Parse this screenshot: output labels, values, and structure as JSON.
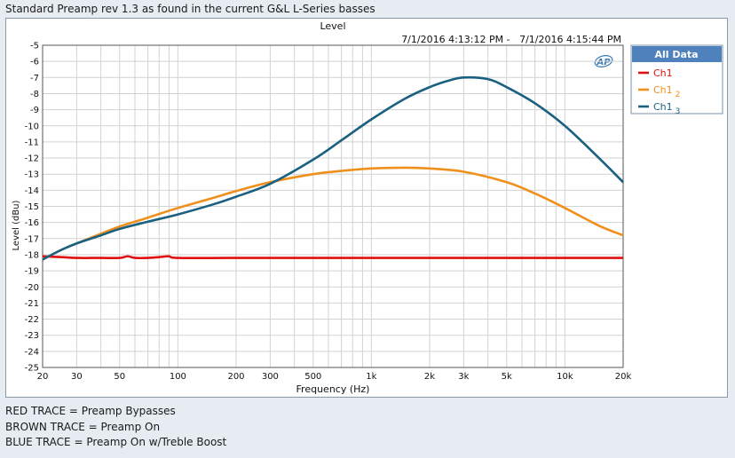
{
  "window_title": "Standard Preamp rev 1.3 as found in the current G&L L-Series basses",
  "notes": [
    "RED TRACE = Preamp Bypasses",
    "BROWN TRACE = Preamp On",
    "BLUE TRACE = Preamp On w/Treble Boost"
  ],
  "logo_text": "AP",
  "chart_data": {
    "type": "line",
    "title": "Level",
    "subtitle": "7/1/2016 4:13:12 PM -   7/1/2016 4:15:44 PM",
    "xlabel": "Frequency (Hz)",
    "ylabel": "Level (dBu)",
    "x_scale": "log",
    "xlim": [
      20,
      20000
    ],
    "ylim": [
      -25,
      -5
    ],
    "grid": true,
    "x_ticks": [
      {
        "value": 20,
        "label": "20"
      },
      {
        "value": 30,
        "label": "30"
      },
      {
        "value": 50,
        "label": "50"
      },
      {
        "value": 100,
        "label": "100"
      },
      {
        "value": 200,
        "label": "200"
      },
      {
        "value": 300,
        "label": "300"
      },
      {
        "value": 500,
        "label": "500"
      },
      {
        "value": 1000,
        "label": "1k"
      },
      {
        "value": 2000,
        "label": "2k"
      },
      {
        "value": 3000,
        "label": "3k"
      },
      {
        "value": 5000,
        "label": "5k"
      },
      {
        "value": 10000,
        "label": "10k"
      },
      {
        "value": 20000,
        "label": "20k"
      }
    ],
    "y_ticks": [
      -5,
      -6,
      -7,
      -8,
      -9,
      -10,
      -11,
      -12,
      -13,
      -14,
      -15,
      -16,
      -17,
      -18,
      -19,
      -20,
      -21,
      -22,
      -23,
      -24,
      -25
    ],
    "legend": {
      "title": "All Data",
      "placement": "right",
      "entries": [
        {
          "label": "Ch1",
          "sub": ""
        },
        {
          "label": "Ch1",
          "sub": "2"
        },
        {
          "label": "Ch1",
          "sub": "3"
        }
      ]
    },
    "series": [
      {
        "color": "#e01010",
        "x": [
          20,
          25,
          30,
          40,
          50,
          55,
          60,
          70,
          80,
          90,
          100,
          200,
          500,
          1000,
          2000,
          5000,
          10000,
          20000
        ],
        "y": [
          -18.1,
          -18.15,
          -18.2,
          -18.2,
          -18.2,
          -18.1,
          -18.2,
          -18.2,
          -18.15,
          -18.1,
          -18.2,
          -18.2,
          -18.2,
          -18.2,
          -18.2,
          -18.2,
          -18.2,
          -18.2
        ]
      },
      {
        "color": "#f0901c",
        "x": [
          20,
          25,
          30,
          40,
          50,
          70,
          100,
          150,
          200,
          300,
          500,
          700,
          1000,
          1500,
          2000,
          3000,
          5000,
          7000,
          10000,
          15000,
          20000
        ],
        "y": [
          -18.3,
          -17.7,
          -17.3,
          -16.7,
          -16.25,
          -15.7,
          -15.1,
          -14.5,
          -14.05,
          -13.5,
          -13.0,
          -12.8,
          -12.65,
          -12.6,
          -12.65,
          -12.85,
          -13.5,
          -14.2,
          -15.1,
          -16.2,
          -16.8
        ]
      },
      {
        "color": "#1a6080",
        "x": [
          20,
          25,
          30,
          40,
          50,
          70,
          100,
          150,
          200,
          300,
          500,
          700,
          1000,
          1500,
          2000,
          2500,
          3000,
          4000,
          5000,
          7000,
          10000,
          15000,
          20000
        ],
        "y": [
          -18.3,
          -17.7,
          -17.3,
          -16.8,
          -16.4,
          -15.95,
          -15.5,
          -14.9,
          -14.4,
          -13.6,
          -12.1,
          -10.9,
          -9.6,
          -8.3,
          -7.6,
          -7.2,
          -7.0,
          -7.1,
          -7.6,
          -8.6,
          -10.0,
          -12.0,
          -13.5
        ]
      }
    ]
  }
}
